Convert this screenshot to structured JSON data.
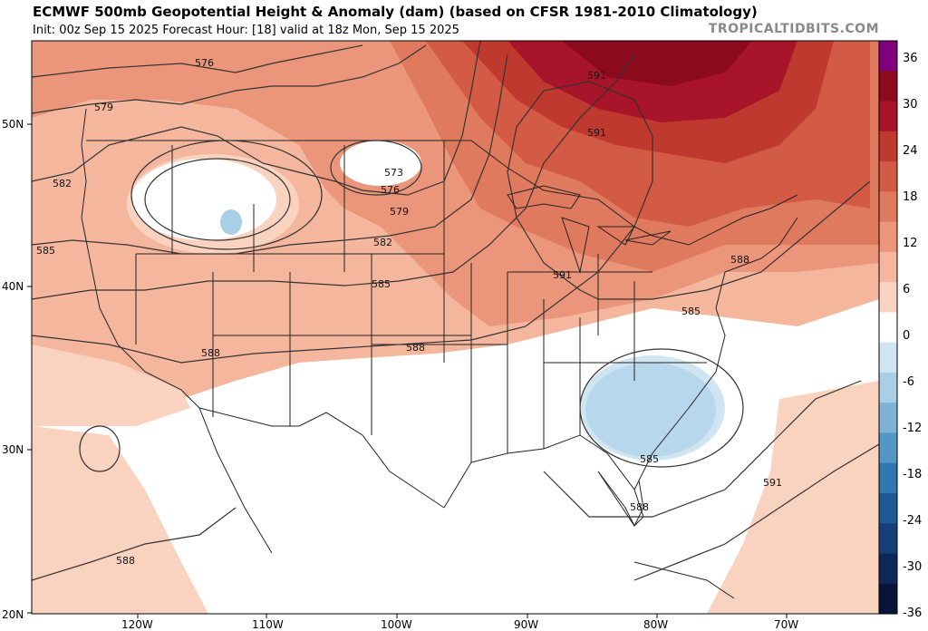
{
  "header": {
    "title": "ECMWF 500mb Geopotential Height & Anomaly (dam) (based on CFSR 1981-2010 Climatology)",
    "subtitle": "Init: 00z Sep 15 2025   Forecast Hour: [18]   valid at 18z Mon, Sep 15 2025",
    "brand": "TROPICALTIDBITS.COM"
  },
  "axes": {
    "lat_labels": [
      "50N",
      "40N",
      "30N",
      "20N"
    ],
    "lon_labels": [
      "120W",
      "110W",
      "100W",
      "90W",
      "80W",
      "70W"
    ]
  },
  "contour_labels": [
    "576",
    "579",
    "582",
    "585",
    "588",
    "573",
    "576",
    "579",
    "582",
    "585",
    "588",
    "591",
    "591",
    "588",
    "585",
    "585",
    "588",
    "591",
    "591",
    "588"
  ],
  "colorbar": {
    "labels": [
      "36",
      "30",
      "24",
      "18",
      "12",
      "6",
      "0",
      "-6",
      "-12",
      "-18",
      "-24",
      "-30",
      "-36"
    ],
    "colors": [
      "#800080",
      "#8b0a1e",
      "#a8152a",
      "#c0392f",
      "#d35a45",
      "#e07a5f",
      "#eb967b",
      "#f4b79e",
      "#fad3c0",
      "#ffffff",
      "#cfe5f2",
      "#a9cfe6",
      "#7fb3d6",
      "#5597c4",
      "#2f78b0",
      "#1f5a94",
      "#163f77",
      "#0e2759",
      "#08153a"
    ]
  }
}
